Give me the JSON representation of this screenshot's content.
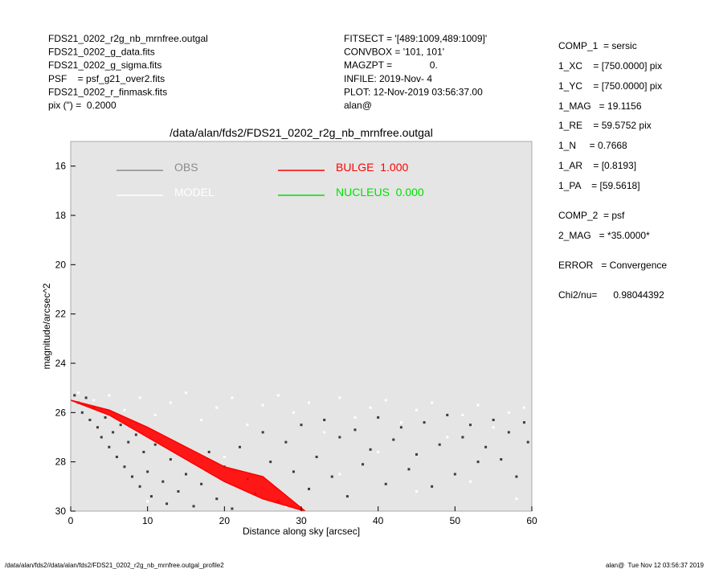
{
  "header": {
    "left": [
      "FDS21_0202_r2g_nb_mrnfree.outgal",
      "FDS21_0202_g_data.fits",
      "FDS21_0202_g_sigma.fits",
      "PSF    = psf_g21_over2.fits",
      "FDS21_0202_r_finmask.fits",
      "pix (\") =  0.2000"
    ],
    "middle": [
      "FITSECT = '[489:1009,489:1009]'",
      "CONVBOX = '101, 101'",
      "MAGZPT =              0.",
      "INFILE: 2019-Nov- 4",
      "PLOT: 12-Nov-2019 03:56:37.00",
      "alan@"
    ],
    "right": [
      "COMP_1  = sersic",
      "1_XC    = [750.0000] pix",
      "1_YC    = [750.0000] pix",
      "1_MAG   = 19.1156",
      "1_RE    = 59.5752 pix",
      "1_N     = 0.7668",
      "1_AR    = [0.8193]",
      "1_PA    = [59.5618]",
      "COMP_2  = psf",
      "2_MAG   = *35.0000*",
      "ERROR   = Convergence",
      "Chi2/nu=      0.98044392"
    ]
  },
  "footer": {
    "left": "/data/alan/fds2//data/alan/fds2/FDS21_0202_r2g_nb_mrnfree.outgal_profile2",
    "right": "alan@  Tue Nov 12 03:56:37 2019"
  },
  "chart_data": {
    "type": "scatter",
    "title": "/data/alan/fds2/FDS21_0202_r2g_nb_mrnfree.outgal",
    "xlabel": "Distance along sky [arcsec]",
    "ylabel": "magnitude/arcsec^2",
    "xlim": [
      0,
      60
    ],
    "ylim": [
      15,
      30
    ],
    "y_inverted": true,
    "xticks": [
      0,
      10,
      20,
      30,
      40,
      50,
      60
    ],
    "yticks": [
      16,
      18,
      20,
      22,
      24,
      26,
      28,
      30
    ],
    "background": "#e5e5e5",
    "series": [
      {
        "name": "OBS",
        "color": "#3c3c3c",
        "legend_color": "#8c8c8c",
        "x": [
          0.5,
          1,
          1.5,
          2,
          2.5,
          3,
          3.5,
          4,
          4.5,
          5,
          5.5,
          6,
          6.5,
          7,
          7.5,
          8,
          8.5,
          9,
          9.5,
          10,
          10.5,
          11,
          12,
          12.5,
          13,
          14,
          15,
          16,
          17,
          18,
          19,
          20,
          21,
          22,
          23,
          24,
          25,
          26,
          27,
          28,
          29,
          30,
          31,
          32,
          33,
          34,
          35,
          36,
          37,
          38,
          39,
          40,
          41,
          42,
          43,
          44,
          45,
          46,
          47,
          48,
          49,
          50,
          51,
          52,
          53,
          54,
          55,
          56,
          57,
          58,
          59,
          59.5
        ],
        "values": [
          25.3,
          25.6,
          26.0,
          25.4,
          26.3,
          25.8,
          26.6,
          27.0,
          26.2,
          27.4,
          26.8,
          27.8,
          26.5,
          28.2,
          27.2,
          28.6,
          26.9,
          29.0,
          27.6,
          28.4,
          29.4,
          27.3,
          28.8,
          29.7,
          27.9,
          29.2,
          28.5,
          29.8,
          28.9,
          27.6,
          29.5,
          28.2,
          29.9,
          27.4,
          28.7,
          29.3,
          26.8,
          28.0,
          29.6,
          27.2,
          28.4,
          26.5,
          29.1,
          27.8,
          26.3,
          28.6,
          27.0,
          29.4,
          26.7,
          28.1,
          27.5,
          26.2,
          28.9,
          27.1,
          26.6,
          28.3,
          27.7,
          26.4,
          29.0,
          27.3,
          26.1,
          28.5,
          27.0,
          26.5,
          28.0,
          27.4,
          26.3,
          27.9,
          26.8,
          28.6,
          26.4,
          27.2
        ]
      },
      {
        "name": "MODEL",
        "color": "#ffffff",
        "legend_color": "#ffffff",
        "x": [
          1,
          3,
          5,
          7,
          9,
          11,
          13,
          15,
          17,
          19,
          21,
          23,
          25,
          27,
          29,
          31,
          33,
          35,
          37,
          39,
          41,
          43,
          45,
          47,
          49,
          51,
          53,
          55,
          57,
          59,
          20,
          35,
          45,
          52,
          58,
          10,
          40,
          28
        ],
        "values": [
          25.2,
          25.5,
          25.3,
          25.9,
          25.4,
          26.1,
          25.6,
          25.2,
          26.3,
          25.8,
          25.4,
          26.5,
          25.7,
          25.3,
          26.0,
          25.6,
          26.8,
          25.4,
          26.2,
          25.8,
          25.5,
          26.4,
          25.9,
          25.6,
          27.0,
          26.1,
          25.7,
          26.6,
          26.0,
          25.8,
          27.8,
          28.5,
          29.2,
          28.8,
          29.5,
          29.6,
          27.6,
          29.8
        ]
      },
      {
        "name": "BULGE  1.000",
        "color": "#ff0000",
        "legend_color": "#ff0000",
        "x": [
          0,
          5,
          10,
          15,
          20,
          25,
          30.5
        ],
        "values": [
          25.5,
          25.9,
          26.6,
          27.4,
          28.2,
          28.6,
          30.0
        ],
        "values2": [
          25.5,
          26.1,
          27.0,
          27.9,
          28.8,
          29.5,
          30.0
        ]
      },
      {
        "name": "NUCLEUS  0.000",
        "color": "#00e000",
        "legend_color": "#00e000",
        "x": [],
        "values": []
      }
    ]
  }
}
